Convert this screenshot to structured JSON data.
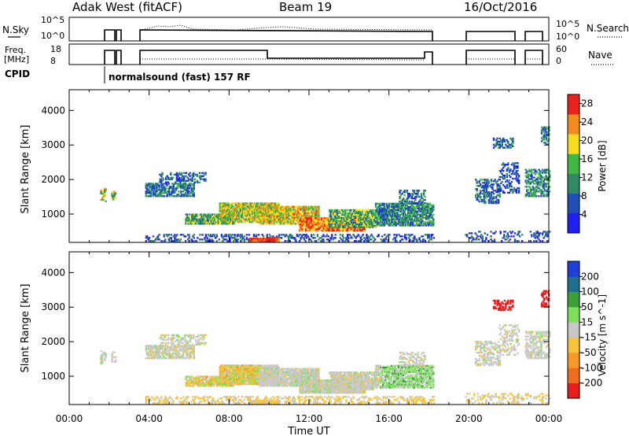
{
  "header": {
    "station": "Adak West (fitACF)",
    "beam": "Beam 19",
    "date": "16/Oct/2016"
  },
  "aux_panels": {
    "nsky_label": "N.Sky",
    "nsearch_label": "N.Search",
    "nsky_ticks": [
      "10^5",
      "10^0"
    ],
    "nsearch_ticks": [
      "10^5",
      "10^0"
    ],
    "freq_label_line1": "Freq.",
    "freq_label_line2": "[MHz]",
    "freq_ticks": [
      "18",
      "8"
    ],
    "nave_label": "Nave",
    "nave_ticks": [
      "60",
      "0"
    ],
    "cpid_label": "CPID",
    "cpid_text": "normalsound (fast) 157 RF"
  },
  "colors": {
    "power_scale": [
      "#1f1ff0",
      "#1f4fb4",
      "#2f8a64",
      "#41b843",
      "#f7dd1d",
      "#f58a1e",
      "#e8221c"
    ],
    "velocity_scale": [
      "#1f3fd8",
      "#1e6f8e",
      "#3ba03a",
      "#7fe05c",
      "#c8c8c8",
      "#f7c43a",
      "#f59a2a",
      "#f06d20",
      "#e81c1c"
    ]
  },
  "chart_data": [
    {
      "type": "heatmap",
      "name": "power-panel",
      "ylabel": "Slant Range [km]",
      "y_ticks": [
        "1000",
        "2000",
        "3000",
        "4000"
      ],
      "y_values": [
        1000,
        2000,
        3000,
        4000
      ],
      "ylim": [
        180,
        4600
      ],
      "xlim": [
        0,
        24
      ],
      "x_ticks": [
        "00:00",
        "04:00",
        "08:00",
        "12:00",
        "16:00",
        "20:00",
        "00:00"
      ],
      "x_values": [
        0,
        4,
        8,
        12,
        16,
        20,
        24
      ],
      "colorbar": {
        "label": "Power [dB]",
        "ticks": [
          "4",
          "8",
          "12",
          "16",
          "20",
          "24",
          "28"
        ],
        "range": [
          0,
          30
        ]
      }
    },
    {
      "type": "heatmap",
      "name": "velocity-panel",
      "ylabel": "Slant Range [km]",
      "y_ticks": [
        "1000",
        "2000",
        "3000",
        "4000"
      ],
      "y_values": [
        1000,
        2000,
        3000,
        4000
      ],
      "ylim": [
        180,
        4600
      ],
      "xlim": [
        0,
        24
      ],
      "x_ticks": [
        "00:00",
        "04:00",
        "08:00",
        "12:00",
        "16:00",
        "20:00",
        "00:00"
      ],
      "x_values": [
        0,
        4,
        8,
        12,
        16,
        20,
        24
      ],
      "xlabel": "Time UT",
      "colorbar": {
        "label": "Velocity [m s^-1]",
        "ticks": [
          "200",
          "100",
          "50",
          "15",
          "-15",
          "-50",
          "-100",
          "-200"
        ]
      }
    }
  ]
}
